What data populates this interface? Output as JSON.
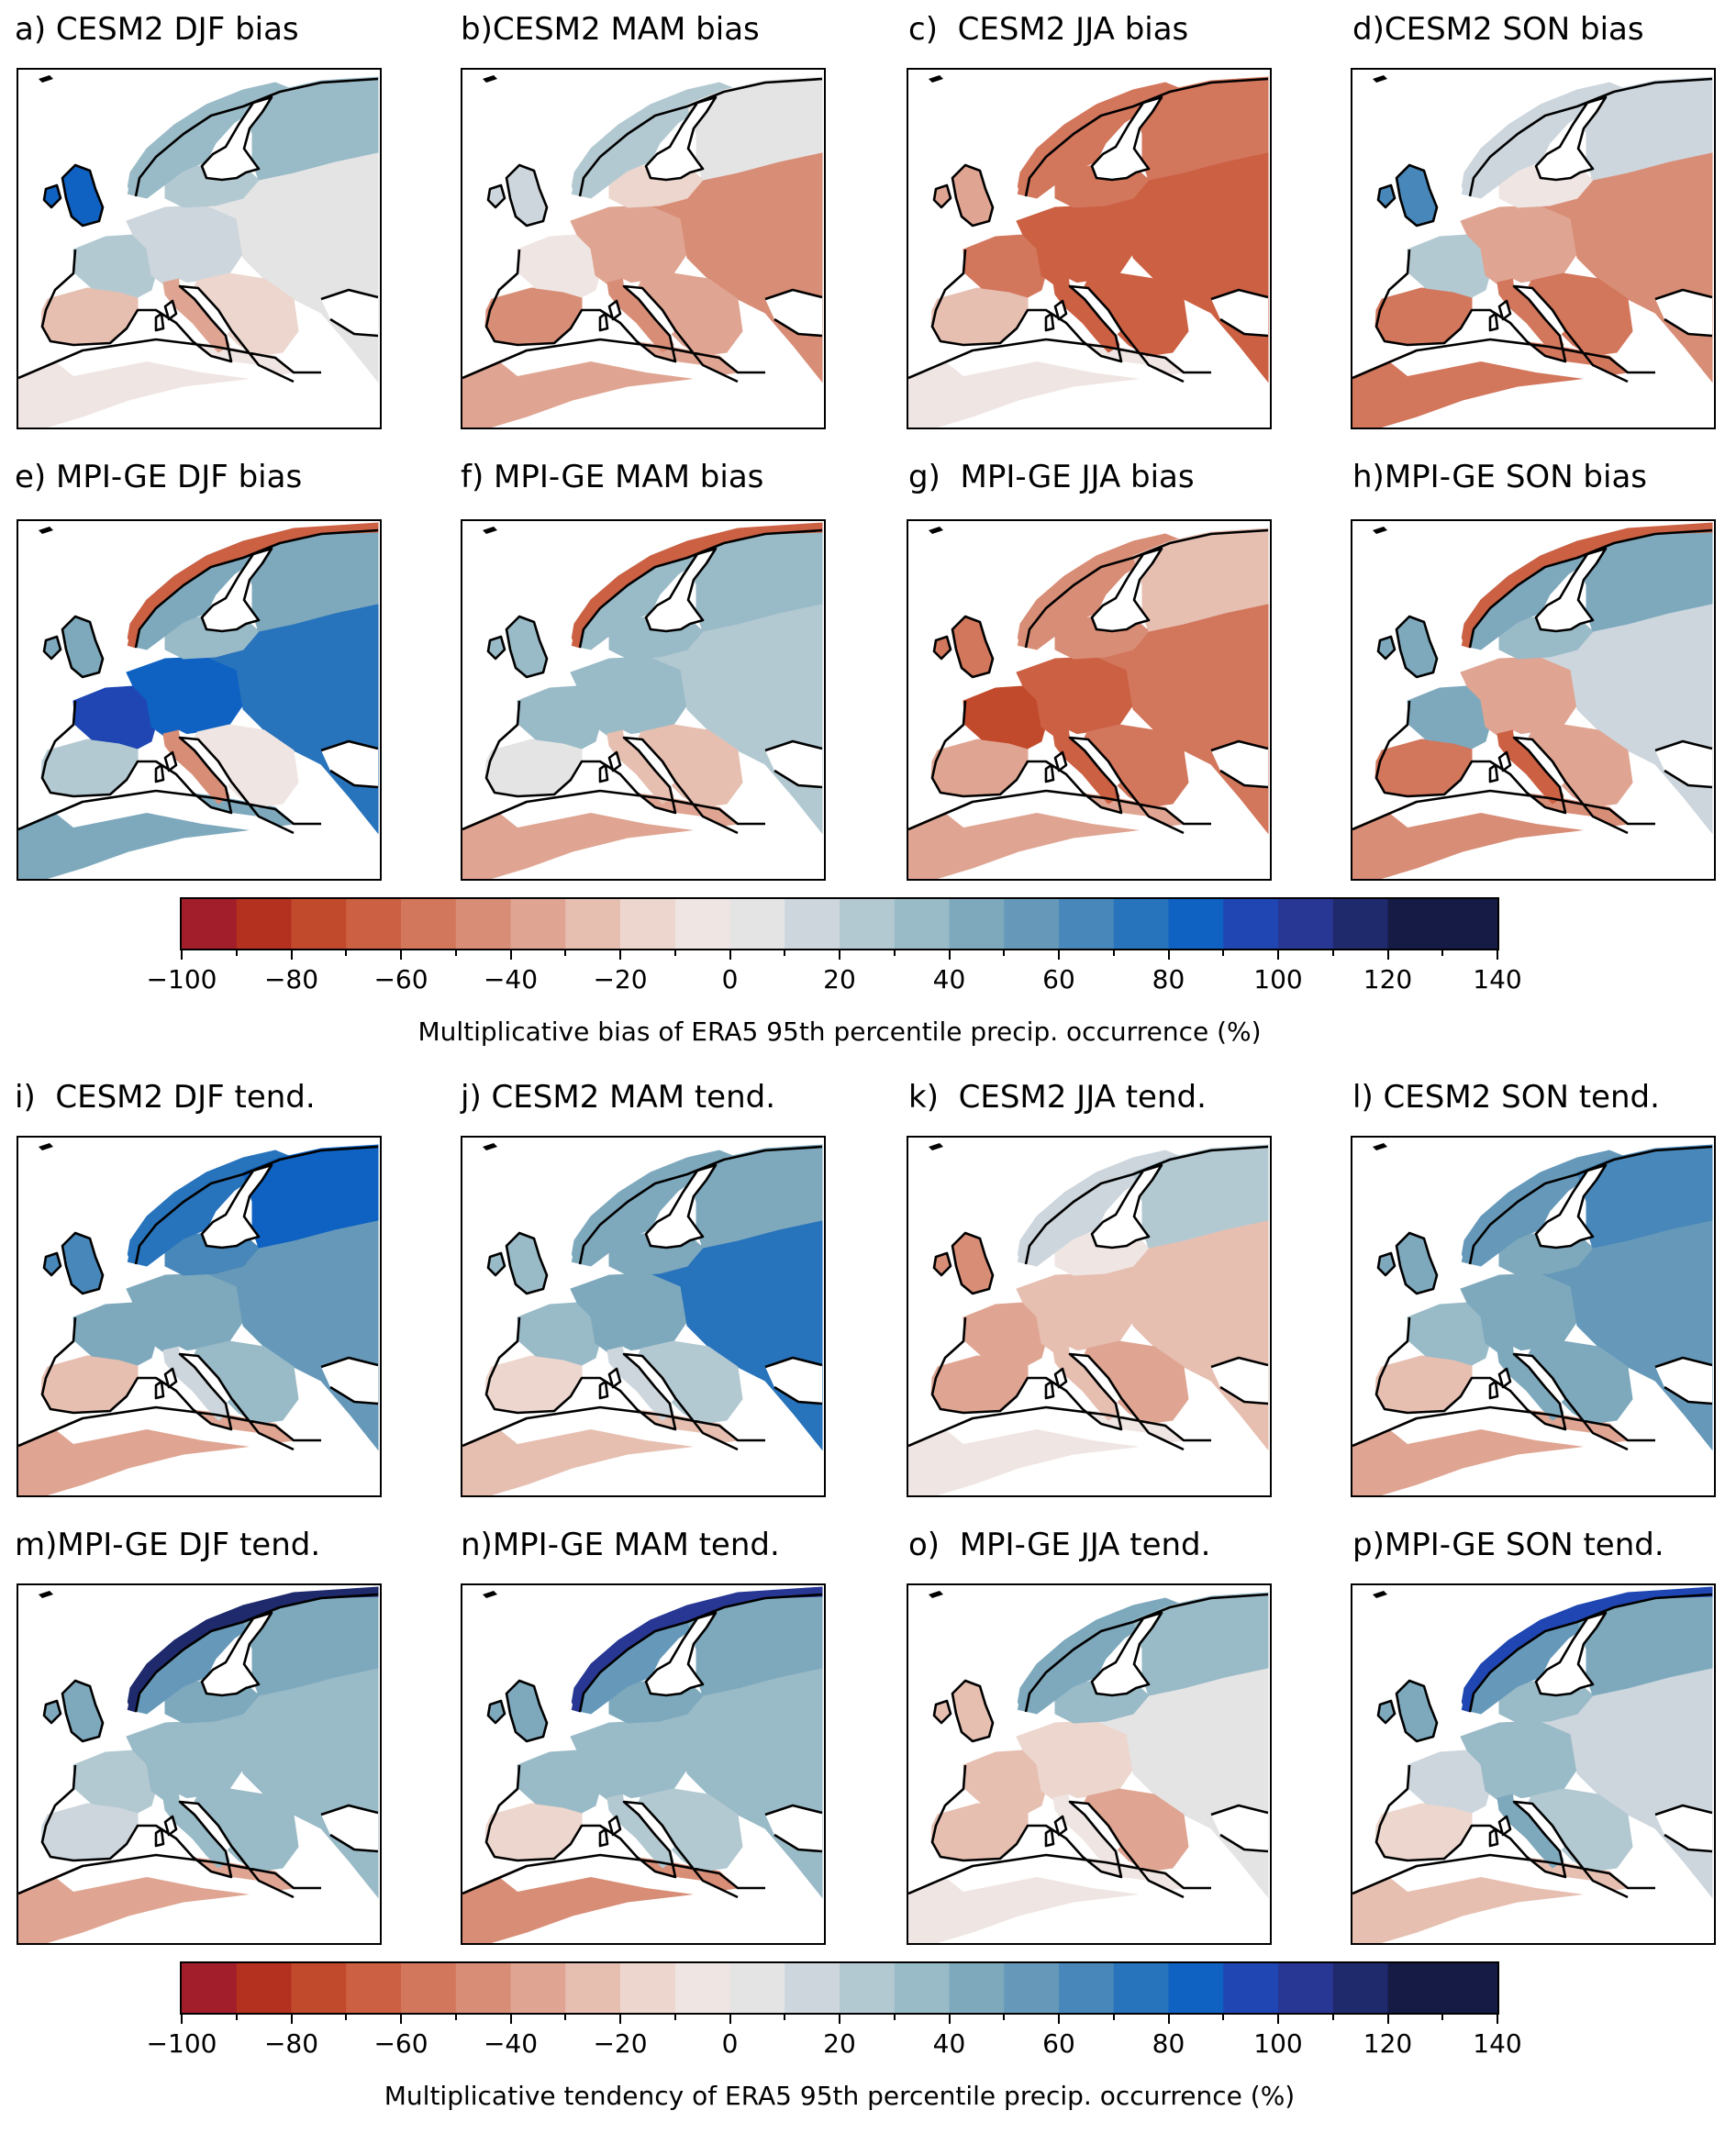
{
  "figure": {
    "bias_panels": [
      {
        "id": "a",
        "label": "a)",
        "title": "CESM2 DJF bias",
        "model": "CESM2",
        "season": "DJF"
      },
      {
        "id": "b",
        "label": "b)",
        "title": "CESM2 MAM bias",
        "model": "CESM2",
        "season": "MAM"
      },
      {
        "id": "c",
        "label": "c)",
        "title": "CESM2 JJA bias",
        "model": "CESM2",
        "season": "JJA"
      },
      {
        "id": "d",
        "label": "d)",
        "title": "CESM2 SON bias",
        "model": "CESM2",
        "season": "SON"
      },
      {
        "id": "e",
        "label": "e)",
        "title": "MPI-GE DJF bias",
        "model": "MPI-GE",
        "season": "DJF"
      },
      {
        "id": "f",
        "label": "f)",
        "title": "MPI-GE MAM bias",
        "model": "MPI-GE",
        "season": "MAM"
      },
      {
        "id": "g",
        "label": "g)",
        "title": "MPI-GE JJA bias",
        "model": "MPI-GE",
        "season": "JJA"
      },
      {
        "id": "h",
        "label": "h)",
        "title": "MPI-GE SON bias",
        "model": "MPI-GE",
        "season": "SON"
      }
    ],
    "tend_panels": [
      {
        "id": "i",
        "label": "i)",
        "title": "CESM2 DJF tend.",
        "model": "CESM2",
        "season": "DJF"
      },
      {
        "id": "j",
        "label": "j)",
        "title": "CESM2 MAM tend.",
        "model": "CESM2",
        "season": "MAM"
      },
      {
        "id": "k",
        "label": "k)",
        "title": "CESM2 JJA tend.",
        "model": "CESM2",
        "season": "JJA"
      },
      {
        "id": "l",
        "label": "l)",
        "title": "CESM2 SON tend.",
        "model": "CESM2",
        "season": "SON"
      },
      {
        "id": "m",
        "label": "m)",
        "title": "MPI-GE DJF tend.",
        "model": "MPI-GE",
        "season": "DJF"
      },
      {
        "id": "n",
        "label": "n)",
        "title": "MPI-GE MAM tend.",
        "model": "MPI-GE",
        "season": "MAM"
      },
      {
        "id": "o",
        "label": "o)",
        "title": "MPI-GE JJA tend.",
        "model": "MPI-GE",
        "season": "JJA"
      },
      {
        "id": "p",
        "label": "p)",
        "title": "MPI-GE SON tend.",
        "model": "MPI-GE",
        "season": "SON"
      }
    ],
    "colorbar_bias_label": "Multiplicative bias of ERA5 95th percentile precip. occurrence (%)",
    "colorbar_tend_label": "Multiplicative tendency of ERA5 95th percentile precip. occurrence (%)",
    "colorbar_ticks": [
      "−100",
      "−80",
      "−60",
      "−40",
      "−20",
      "0",
      "20",
      "40",
      "60",
      "80",
      "100",
      "120",
      "140"
    ]
  },
  "chart_data": [
    {
      "type": "heatmap",
      "group": "bias",
      "colorbar": {
        "label": "Multiplicative bias of ERA5 95th percentile precip. occurrence (%)",
        "range": [
          -100,
          140
        ],
        "step": 10,
        "ticks": [
          -100,
          -80,
          -60,
          -40,
          -20,
          0,
          20,
          40,
          60,
          80,
          100,
          120,
          140
        ]
      },
      "panels": {
        "a": {
          "Scandinavia": 30,
          "Finland": 30,
          "Baltic": 25,
          "British Isles": 80,
          "France": 20,
          "Central Europe": 15,
          "Eastern Europe": 5,
          "Iberia": -30,
          "Italy": -40,
          "Balkans": -20,
          "North Africa": -10
        },
        "b": {
          "Scandinavia": 20,
          "Finland": 5,
          "Baltic": -15,
          "British Isles": 15,
          "France": -10,
          "Central Europe": -40,
          "Eastern Europe": -45,
          "Iberia": -45,
          "Italy": -50,
          "Balkans": -40,
          "North Africa": -40
        },
        "c": {
          "Scandinavia": -55,
          "Finland": -55,
          "Baltic": -55,
          "British Isles": -40,
          "France": -55,
          "Central Europe": -70,
          "Eastern Europe": -70,
          "Iberia": -30,
          "Italy": -65,
          "Balkans": -70,
          "North Africa": -10
        },
        "d": {
          "Scandinavia": 15,
          "Finland": 10,
          "Baltic": -10,
          "British Isles": 60,
          "France": 20,
          "Central Europe": -40,
          "Eastern Europe": -45,
          "Iberia": -60,
          "Italy": -60,
          "Balkans": -55,
          "North Africa": -60
        },
        "e": {
          "Scandinavia": 40,
          "Finland": 40,
          "Norway coast": -70,
          "Baltic": 35,
          "British Isles": 45,
          "France": 90,
          "Central Europe": 80,
          "Eastern Europe": 70,
          "Iberia": 20,
          "Italy": -50,
          "Balkans": -10,
          "North Africa": 45
        },
        "f": {
          "Scandinavia": 35,
          "Finland": 30,
          "Norway coast": -70,
          "Baltic": 30,
          "British Isles": 30,
          "France": 35,
          "Central Europe": 30,
          "Eastern Europe": 20,
          "Iberia": 5,
          "Italy": -30,
          "Balkans": -30,
          "North Africa": -40
        },
        "g": {
          "Scandinavia": -50,
          "Finland": -30,
          "Baltic": -45,
          "British Isles": -55,
          "France": -75,
          "Central Europe": -70,
          "Eastern Europe": -60,
          "Iberia": -40,
          "Italy": -65,
          "Balkans": -60,
          "North Africa": -40
        },
        "h": {
          "Scandinavia": 40,
          "Finland": 40,
          "Norway coast": -70,
          "Baltic": 35,
          "British Isles": 40,
          "France": 45,
          "Central Europe": -40,
          "Eastern Europe": 10,
          "Iberia": -55,
          "Italy": -65,
          "Balkans": -40,
          "North Africa": -50
        }
      }
    },
    {
      "type": "heatmap",
      "group": "tendency",
      "colorbar": {
        "label": "Multiplicative tendency of ERA5 95th percentile precip. occurrence (%)",
        "range": [
          -100,
          140
        ],
        "step": 10,
        "ticks": [
          -100,
          -80,
          -60,
          -40,
          -20,
          0,
          20,
          40,
          60,
          80,
          100,
          120,
          140
        ]
      },
      "panels": {
        "i": {
          "Scandinavia": 75,
          "Finland": 80,
          "Baltic": 65,
          "British Isles": 65,
          "France": 40,
          "Central Europe": 45,
          "Eastern Europe": 50,
          "Iberia": -25,
          "Italy": 15,
          "Balkans": 30,
          "North Africa": -40
        },
        "j": {
          "Scandinavia": 45,
          "Finland": 40,
          "Baltic": 40,
          "British Isles": 35,
          "France": 30,
          "Central Europe": 40,
          "Eastern Europe": 70,
          "Iberia": -20,
          "Italy": 15,
          "Balkans": 20,
          "North Africa": -30
        },
        "k": {
          "Scandinavia": 10,
          "Finland": 20,
          "Baltic": -10,
          "British Isles": -45,
          "France": -35,
          "Central Europe": -30,
          "Eastern Europe": -25,
          "Iberia": -40,
          "Italy": -30,
          "Balkans": -35,
          "North Africa": -10
        },
        "l": {
          "Scandinavia": 50,
          "Finland": 60,
          "Baltic": 45,
          "British Isles": 40,
          "France": 30,
          "Central Europe": 45,
          "Eastern Europe": 55,
          "Iberia": -30,
          "Italy": 45,
          "Balkans": 45,
          "North Africa": -35
        },
        "m": {
          "Scandinavia": 55,
          "Finland": 45,
          "Norway coast": 110,
          "Baltic": 40,
          "British Isles": 45,
          "France": 25,
          "Central Europe": 35,
          "Eastern Europe": 30,
          "Iberia": 10,
          "Italy": 35,
          "Balkans": 30,
          "North Africa": -40
        },
        "n": {
          "Scandinavia": 50,
          "Finland": 45,
          "Norway coast": 100,
          "Baltic": 40,
          "British Isles": 40,
          "France": 30,
          "Central Europe": 35,
          "Eastern Europe": 35,
          "Iberia": -15,
          "Italy": 20,
          "Balkans": 25,
          "North Africa": -50
        },
        "o": {
          "Scandinavia": 45,
          "Finland": 35,
          "Baltic": 30,
          "British Isles": -25,
          "France": -30,
          "Central Europe": -15,
          "Eastern Europe": 5,
          "Iberia": -30,
          "Italy": -10,
          "Balkans": -35,
          "North Africa": -10
        },
        "p": {
          "Scandinavia": 50,
          "Finland": 40,
          "Norway coast": 90,
          "Baltic": 35,
          "British Isles": 40,
          "France": 15,
          "Central Europe": 30,
          "Eastern Europe": 10,
          "Iberia": -20,
          "Italy": 40,
          "Balkans": 25,
          "North Africa": -25
        }
      }
    }
  ],
  "colors": {
    "stops": [
      "#a11e2a",
      "#b4301f",
      "#c24a2c",
      "#cc6043",
      "#d2765c",
      "#d88d76",
      "#dfa592",
      "#e6bfb1",
      "#ecd6cd",
      "#efe5e2",
      "#e4e4e4",
      "#cdd6dd",
      "#b3c9d2",
      "#99bac7",
      "#7ea9bd",
      "#6699b9",
      "#4887b9",
      "#2773bc",
      "#0f62c2",
      "#1f46b2",
      "#283794",
      "#1f2a6c",
      "#161b46"
    ],
    "land_missing": "#ffffff",
    "coast": "#000000"
  }
}
